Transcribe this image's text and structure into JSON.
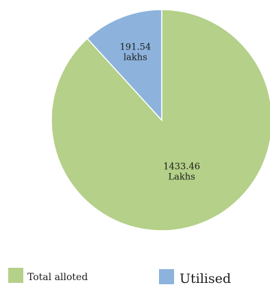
{
  "chart_data": {
    "type": "pie",
    "slices": [
      {
        "name": "Total alloted",
        "value": 1433.46,
        "label_lines": [
          "1433.46",
          "Lakhs"
        ],
        "color": "#b4d089"
      },
      {
        "name": "Utilised",
        "value": 191.54,
        "label_lines": [
          "191.54",
          "lakhs"
        ],
        "color": "#8db3dd"
      }
    ],
    "legend": {
      "placement": "bottom",
      "items": [
        "Total alloted",
        "Utilised"
      ]
    }
  }
}
